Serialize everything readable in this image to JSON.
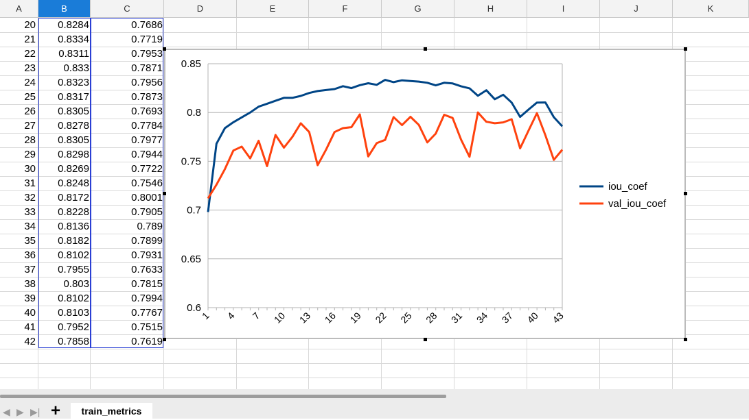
{
  "spreadsheet": {
    "columns": [
      "A",
      "B",
      "C",
      "D",
      "E",
      "F",
      "G",
      "H",
      "I",
      "J",
      "K"
    ],
    "selected_column": "B",
    "rows": [
      {
        "row": "20",
        "b": "0.8284",
        "c": "0.7686"
      },
      {
        "row": "21",
        "b": "0.8334",
        "c": "0.7719"
      },
      {
        "row": "22",
        "b": "0.8311",
        "c": "0.7953"
      },
      {
        "row": "23",
        "b": "0.833",
        "c": "0.7871"
      },
      {
        "row": "24",
        "b": "0.8323",
        "c": "0.7956"
      },
      {
        "row": "25",
        "b": "0.8317",
        "c": "0.7873"
      },
      {
        "row": "26",
        "b": "0.8305",
        "c": "0.7693"
      },
      {
        "row": "27",
        "b": "0.8278",
        "c": "0.7784"
      },
      {
        "row": "28",
        "b": "0.8305",
        "c": "0.7977"
      },
      {
        "row": "29",
        "b": "0.8298",
        "c": "0.7944"
      },
      {
        "row": "30",
        "b": "0.8269",
        "c": "0.7722"
      },
      {
        "row": "31",
        "b": "0.8248",
        "c": "0.7546"
      },
      {
        "row": "32",
        "b": "0.8172",
        "c": "0.8001"
      },
      {
        "row": "33",
        "b": "0.8228",
        "c": "0.7905"
      },
      {
        "row": "34",
        "b": "0.8136",
        "c": "0.789"
      },
      {
        "row": "35",
        "b": "0.8182",
        "c": "0.7899"
      },
      {
        "row": "36",
        "b": "0.8102",
        "c": "0.7931"
      },
      {
        "row": "37",
        "b": "0.7955",
        "c": "0.7633"
      },
      {
        "row": "38",
        "b": "0.803",
        "c": "0.7815"
      },
      {
        "row": "39",
        "b": "0.8102",
        "c": "0.7994"
      },
      {
        "row": "40",
        "b": "0.8103",
        "c": "0.7767"
      },
      {
        "row": "41",
        "b": "0.7952",
        "c": "0.7515"
      },
      {
        "row": "42",
        "b": "0.7858",
        "c": "0.7619"
      }
    ]
  },
  "colors": {
    "header_selected": "#1a7cd8",
    "selection_border": "#2a3fd4",
    "iou_coef": "#004586",
    "val_iou_coef": "#ff420e"
  },
  "chart_data": {
    "type": "line",
    "x": [
      1,
      2,
      3,
      4,
      5,
      6,
      7,
      8,
      9,
      10,
      11,
      12,
      13,
      14,
      15,
      16,
      17,
      18,
      19,
      20,
      21,
      22,
      23,
      24,
      25,
      26,
      27,
      28,
      29,
      30,
      31,
      32,
      33,
      34,
      35,
      36,
      37,
      38,
      39,
      40,
      41,
      42,
      43
    ],
    "x_tick_labels": [
      "1",
      "4",
      "7",
      "10",
      "13",
      "16",
      "19",
      "22",
      "25",
      "28",
      "31",
      "34",
      "37",
      "40",
      "43"
    ],
    "y_tick_labels": [
      "0.85",
      "0.8",
      "0.75",
      "0.7",
      "0.65",
      "0.6"
    ],
    "ylim": [
      0.6,
      0.85
    ],
    "grid": true,
    "legend_position": "right",
    "series": [
      {
        "name": "iou_coef",
        "color": "#004586",
        "values": [
          0.698,
          0.768,
          0.784,
          0.79,
          0.795,
          0.8,
          0.806,
          0.809,
          0.812,
          0.815,
          0.815,
          0.817,
          0.82,
          0.822,
          0.823,
          0.824,
          0.827,
          0.825,
          0.828,
          0.83,
          0.8284,
          0.8334,
          0.8311,
          0.833,
          0.8323,
          0.8317,
          0.8305,
          0.8278,
          0.8305,
          0.8298,
          0.8269,
          0.8248,
          0.8172,
          0.8228,
          0.8136,
          0.8182,
          0.8102,
          0.7955,
          0.803,
          0.8102,
          0.8103,
          0.7952,
          0.7858
        ]
      },
      {
        "name": "val_iou_coef",
        "color": "#ff420e",
        "values": [
          0.712,
          0.726,
          0.742,
          0.761,
          0.765,
          0.753,
          0.771,
          0.745,
          0.777,
          0.764,
          0.775,
          0.789,
          0.78,
          0.746,
          0.762,
          0.78,
          0.784,
          0.785,
          0.798,
          0.755,
          0.7686,
          0.7719,
          0.7953,
          0.7871,
          0.7956,
          0.7873,
          0.7693,
          0.7784,
          0.7977,
          0.7944,
          0.7722,
          0.7546,
          0.8001,
          0.7905,
          0.789,
          0.7899,
          0.7931,
          0.7633,
          0.7815,
          0.7994,
          0.7767,
          0.7515,
          0.7619
        ]
      }
    ]
  },
  "footer": {
    "sheet_tab": "train_metrics",
    "add_sheet": "+",
    "nav_first": "◀",
    "nav_next": "▶",
    "nav_last": "▶|"
  }
}
